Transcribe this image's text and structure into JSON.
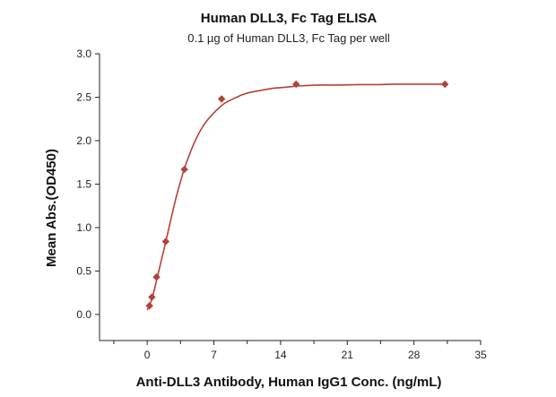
{
  "chart_data": {
    "type": "scatter",
    "title": "Human DLL3, Fc Tag ELISA",
    "subtitle": "0.1 µg of Human DLL3, Fc Tag per well",
    "xlabel": "Anti-DLL3 Antibody, Human IgG1 Conc. (ng/mL)",
    "ylabel": "Mean Abs.(OD450)",
    "xlim": [
      -5,
      35
    ],
    "ylim": [
      -0.3,
      3.0
    ],
    "xticks": [
      0,
      7,
      14,
      21,
      28,
      35
    ],
    "yticks": [
      0.0,
      0.5,
      1.0,
      1.5,
      2.0,
      2.5,
      3.0
    ],
    "x_minor_ticks": [
      -3.5,
      3.5,
      10.5,
      17.5,
      24.5,
      31.5
    ],
    "grid": false,
    "series": [
      {
        "color": "#b5403a",
        "marker": "diamond",
        "points": [
          {
            "x": 0.24,
            "y": 0.1
          },
          {
            "x": 0.49,
            "y": 0.2
          },
          {
            "x": 0.98,
            "y": 0.43
          },
          {
            "x": 1.95,
            "y": 0.84
          },
          {
            "x": 3.91,
            "y": 1.67
          },
          {
            "x": 7.81,
            "y": 2.48
          },
          {
            "x": 15.63,
            "y": 2.65
          },
          {
            "x": 31.25,
            "y": 2.65
          }
        ],
        "fit": {
          "color": "#b5403a",
          "x": [
            0,
            0.5,
            1,
            1.5,
            2,
            2.5,
            3,
            3.5,
            4,
            5,
            6,
            7,
            8,
            9,
            10,
            11,
            12,
            13,
            14,
            15,
            16,
            18,
            20,
            22,
            24,
            26,
            28,
            30,
            31.25
          ],
          "y": [
            0.05,
            0.18,
            0.4,
            0.63,
            0.86,
            1.1,
            1.33,
            1.53,
            1.71,
            1.99,
            2.19,
            2.32,
            2.42,
            2.48,
            2.53,
            2.56,
            2.58,
            2.6,
            2.61,
            2.62,
            2.63,
            2.64,
            2.64,
            2.645,
            2.645,
            2.65,
            2.65,
            2.65,
            2.65
          ]
        }
      }
    ]
  }
}
